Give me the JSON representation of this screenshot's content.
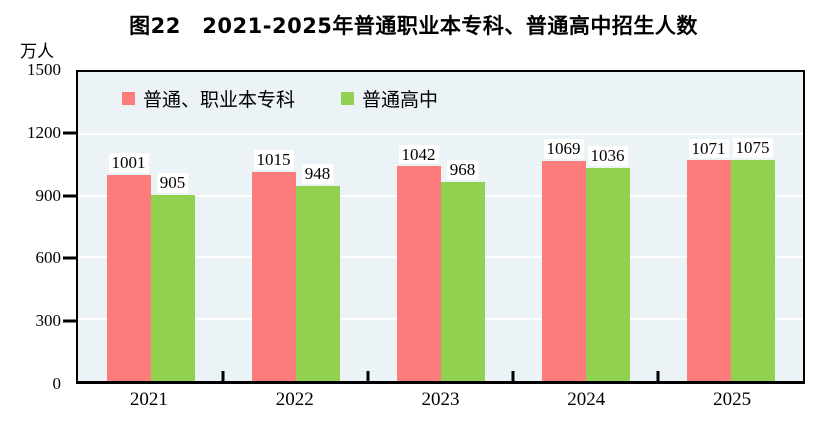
{
  "figure": {
    "title": "图22　2021-2025年普通职业本专科、普通高中招生人数",
    "unit_label": "万人"
  },
  "colors": {
    "series1": "#FC7B7B",
    "series2": "#92D050",
    "plot_background": "#EBF3F7",
    "gridline": "#FFFFFF",
    "axis": "#000000",
    "text": "#000000"
  },
  "legend": {
    "items": [
      {
        "label": "普通、职业本专科",
        "color": "#FC7B7B"
      },
      {
        "label": "普通高中",
        "color": "#92D050"
      }
    ]
  },
  "chart_data": {
    "type": "bar",
    "title": "图22　2021-2025年普通职业本专科、普通高中招生人数",
    "categories": [
      "2021",
      "2022",
      "2023",
      "2024",
      "2025"
    ],
    "series": [
      {
        "name": "普通、职业本专科",
        "color": "#FC7B7B",
        "values": [
          1001,
          1015,
          1042,
          1069,
          1071
        ]
      },
      {
        "name": "普通高中",
        "color": "#92D050",
        "values": [
          905,
          948,
          968,
          1036,
          1075
        ]
      }
    ],
    "ylabel": "万人",
    "xlabel": "",
    "ylim": [
      0,
      1500
    ],
    "yticks": [
      0,
      300,
      600,
      900,
      1200,
      1500
    ],
    "grid": true,
    "gridlines_at": [
      300,
      600,
      900,
      1200
    ],
    "legend_position": "top-left-inside",
    "data_labels": true
  }
}
